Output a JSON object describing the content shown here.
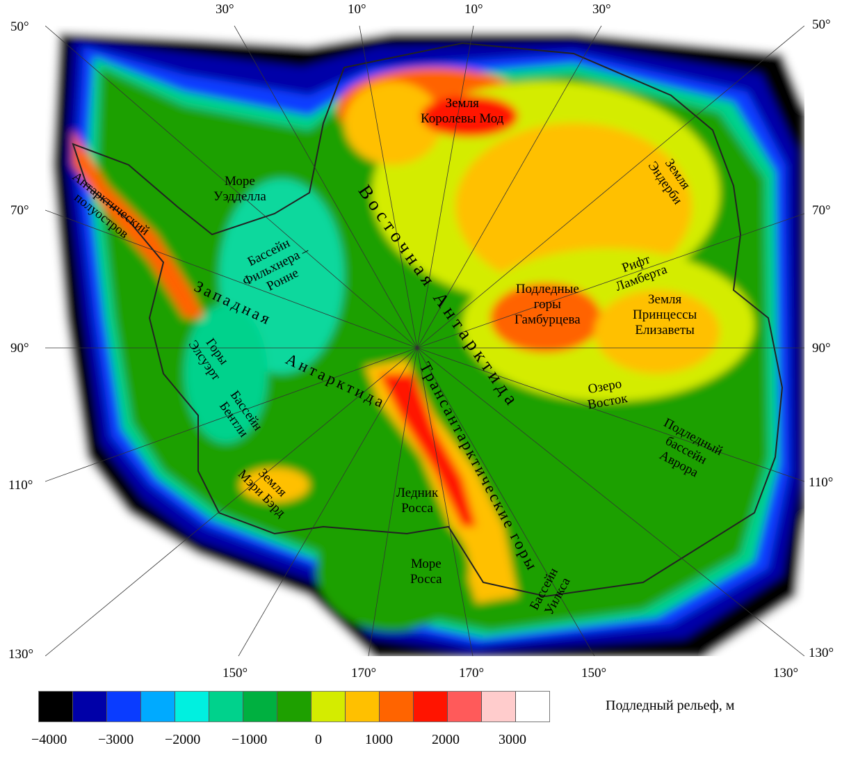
{
  "map": {
    "legend": {
      "title": "Подледный рельеф, м",
      "colors": [
        "#000000",
        "#0000a8",
        "#0a3cff",
        "#00aaff",
        "#00f0e0",
        "#00d28c",
        "#00b040",
        "#1ea000",
        "#d4ec00",
        "#ffc000",
        "#ff6400",
        "#ff1400",
        "#ff5a5a",
        "#ffcccc",
        "#ffffff"
      ],
      "tick_labels": [
        "−4000",
        "−3000",
        "−2000",
        "−1000",
        "0",
        "1000",
        "2000",
        "3000"
      ]
    },
    "top_ticks": [
      "30°",
      "10°",
      "10°",
      "30°"
    ],
    "bottom_ticks": [
      "150°",
      "170°",
      "170°",
      "150°",
      "130°"
    ],
    "left_ticks": [
      "50°",
      "70°",
      "90°",
      "110°",
      "130°"
    ],
    "right_ticks": [
      "50°",
      "70°",
      "90°",
      "110°",
      "130°"
    ],
    "labels": {
      "queen_maud": "Земля\nКоролевы Мод",
      "enderby": "Земля\nЭндерби",
      "weddell": "Море\nУэдделла",
      "peninsula": "Антарктический\nполуостров",
      "filchner": "Бассейн\nФильхнера –\nРонне",
      "east_antarctica": "Восточная Антарктида",
      "west_antarctica_1": "Западная",
      "west_antarctica_2": "Антарктида",
      "ellsworth": "Горы\nЭлсуэрт",
      "bentley": "Бассейн\nБентли",
      "marie_byrd": "Земля\nМэри Бэрд",
      "gamburtsev": "Подледные\nгоры\nГамбурцева",
      "lambert": "Рифт\nЛамберта",
      "princess_elizabeth": "Земля\nПринцессы\nЕлизаветы",
      "vostok": "Озеро\nВосток",
      "aurora": "Подледный\nбассейн\nАврора",
      "transantarctic": "Трансантарктические горы",
      "ross_ice": "Ледник\nРосса",
      "ross_sea": "Море\nРосса",
      "wilkes": "Бассейн\nУилкса"
    }
  }
}
